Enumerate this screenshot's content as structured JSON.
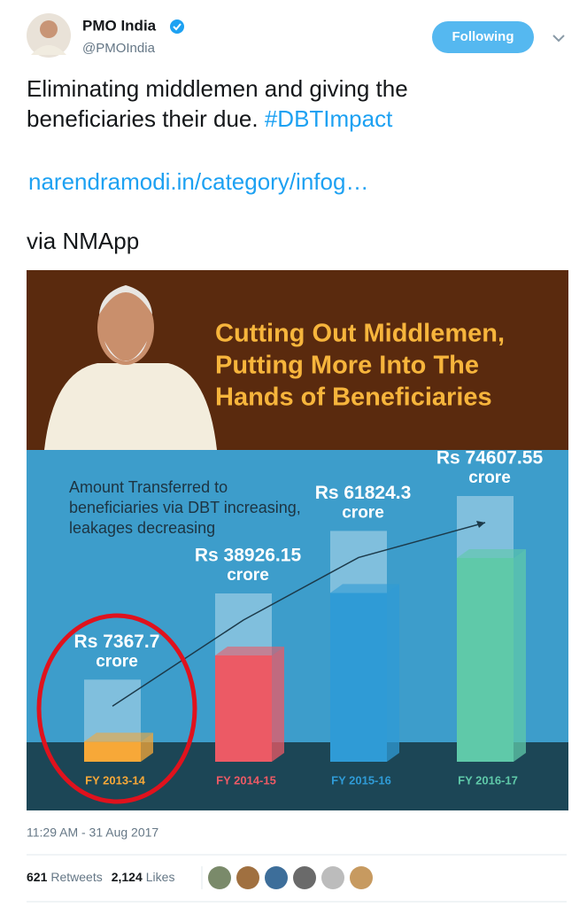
{
  "tweet": {
    "name": "PMO India",
    "handle": "@PMOIndia",
    "button": "Following",
    "text": [
      "Eliminating middlemen and giving the",
      "beneficiaries their due."
    ],
    "hashtag": "#DBTImpact",
    "link": "narendramodi.in/category/infog…",
    "via": "via NMApp",
    "timestamp": "11:29 AM - 31 Aug 2017",
    "retweets": "621",
    "retweets_label": "Retweets",
    "likes": "2,124",
    "likes_label": "Likes"
  },
  "chart_data": {
    "type": "bar",
    "title": [
      "Cutting Out Middlemen,",
      "Putting More Into The",
      "Hands of Beneficiaries"
    ],
    "subtitle": [
      "Amount Transferred to",
      "beneficiaries via DBT increasing,",
      "leakages decreasing"
    ],
    "categories": [
      "FY 2013-14",
      "FY 2014-15",
      "FY 2015-16",
      "FY 2016-17"
    ],
    "values": [
      7367.7,
      38926.15,
      61824.3,
      74607.55
    ],
    "value_labels": [
      "Rs 7367.7",
      "Rs 38926.15",
      "Rs 61824.3",
      "Rs 74607.55"
    ],
    "unit": "crore",
    "colors": [
      "#f7a838",
      "#ec5a65",
      "#2f9bd6",
      "#5fc9a9"
    ]
  }
}
